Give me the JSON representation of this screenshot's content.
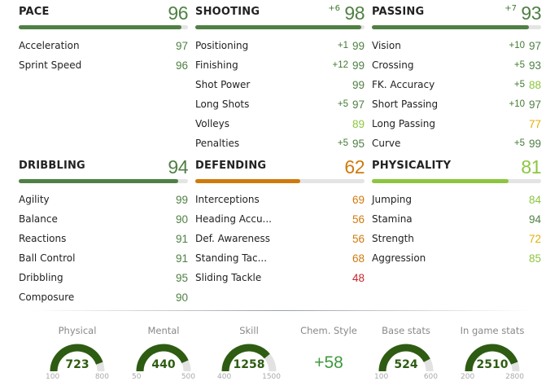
{
  "categories": [
    {
      "title": "PACE",
      "value": "96",
      "bonus": "",
      "color": "#4f8044",
      "fill": 0.96,
      "stats": [
        {
          "label": "Acceleration",
          "bonus": "",
          "value": "97",
          "color": "#4f8044"
        },
        {
          "label": "Sprint Speed",
          "bonus": "",
          "value": "96",
          "color": "#4f8044"
        }
      ]
    },
    {
      "title": "SHOOTING",
      "value": "98",
      "bonus": "+6",
      "color": "#4f8044",
      "fill": 0.98,
      "stats": [
        {
          "label": "Positioning",
          "bonus": "+1",
          "value": "99",
          "color": "#4f8044"
        },
        {
          "label": "Finishing",
          "bonus": "+12",
          "value": "99",
          "color": "#4f8044"
        },
        {
          "label": "Shot Power",
          "bonus": "",
          "value": "99",
          "color": "#4f8044"
        },
        {
          "label": "Long Shots",
          "bonus": "+5",
          "value": "97",
          "color": "#4f8044"
        },
        {
          "label": "Volleys",
          "bonus": "",
          "value": "89",
          "color": "#8cc63f"
        },
        {
          "label": "Penalties",
          "bonus": "+5",
          "value": "95",
          "color": "#4f8044"
        }
      ]
    },
    {
      "title": "PASSING",
      "value": "93",
      "bonus": "+7",
      "color": "#4f8044",
      "fill": 0.93,
      "stats": [
        {
          "label": "Vision",
          "bonus": "+10",
          "value": "97",
          "color": "#4f8044"
        },
        {
          "label": "Crossing",
          "bonus": "+5",
          "value": "93",
          "color": "#4f8044"
        },
        {
          "label": "FK. Accuracy",
          "bonus": "+5",
          "value": "88",
          "color": "#8cc63f"
        },
        {
          "label": "Short Passing",
          "bonus": "+10",
          "value": "97",
          "color": "#4f8044"
        },
        {
          "label": "Long Passing",
          "bonus": "",
          "value": "77",
          "color": "#e2b007"
        },
        {
          "label": "Curve",
          "bonus": "+5",
          "value": "99",
          "color": "#4f8044"
        }
      ]
    },
    {
      "title": "DRIBBLING",
      "value": "94",
      "bonus": "",
      "color": "#4f8044",
      "fill": 0.94,
      "stats": [
        {
          "label": "Agility",
          "bonus": "",
          "value": "99",
          "color": "#4f8044"
        },
        {
          "label": "Balance",
          "bonus": "",
          "value": "90",
          "color": "#4f8044"
        },
        {
          "label": "Reactions",
          "bonus": "",
          "value": "91",
          "color": "#4f8044"
        },
        {
          "label": "Ball Control",
          "bonus": "",
          "value": "91",
          "color": "#4f8044"
        },
        {
          "label": "Dribbling",
          "bonus": "",
          "value": "95",
          "color": "#4f8044"
        },
        {
          "label": "Composure",
          "bonus": "",
          "value": "90",
          "color": "#4f8044"
        }
      ]
    },
    {
      "title": "DEFENDING",
      "value": "62",
      "bonus": "",
      "color": "#d07a0c",
      "fill": 0.62,
      "stats": [
        {
          "label": "Interceptions",
          "bonus": "",
          "value": "69",
          "color": "#d07a0c"
        },
        {
          "label": "Heading Accu...",
          "bonus": "",
          "value": "56",
          "color": "#d07a0c"
        },
        {
          "label": "Def. Awareness",
          "bonus": "",
          "value": "56",
          "color": "#d07a0c"
        },
        {
          "label": "Standing Tac...",
          "bonus": "",
          "value": "68",
          "color": "#d07a0c"
        },
        {
          "label": "Sliding Tackle",
          "bonus": "",
          "value": "48",
          "color": "#c8262b"
        }
      ]
    },
    {
      "title": "PHYSICALITY",
      "value": "81",
      "bonus": "",
      "color": "#8cc63f",
      "fill": 0.81,
      "stats": [
        {
          "label": "Jumping",
          "bonus": "",
          "value": "84",
          "color": "#8cc63f"
        },
        {
          "label": "Stamina",
          "bonus": "",
          "value": "94",
          "color": "#4f8044"
        },
        {
          "label": "Strength",
          "bonus": "",
          "value": "72",
          "color": "#e2b007"
        },
        {
          "label": "Aggression",
          "bonus": "",
          "value": "85",
          "color": "#8cc63f"
        }
      ]
    }
  ],
  "summary": [
    {
      "label": "Physical",
      "value": "723",
      "min": "100",
      "max": "800",
      "type": "gauge"
    },
    {
      "label": "Mental",
      "value": "440",
      "min": "50",
      "max": "500",
      "type": "gauge"
    },
    {
      "label": "Skill",
      "value": "1258",
      "min": "400",
      "max": "1500",
      "type": "gauge"
    },
    {
      "label": "Chem. Style",
      "value": "+58",
      "type": "text"
    },
    {
      "label": "Base stats",
      "value": "524",
      "min": "100",
      "max": "600",
      "type": "gauge"
    },
    {
      "label": "In game stats",
      "value": "2510",
      "min": "200",
      "max": "2800",
      "type": "gauge"
    }
  ],
  "colors": {
    "gauge_fill": "#2e5c12",
    "gauge_track": "#e2e2e2"
  }
}
